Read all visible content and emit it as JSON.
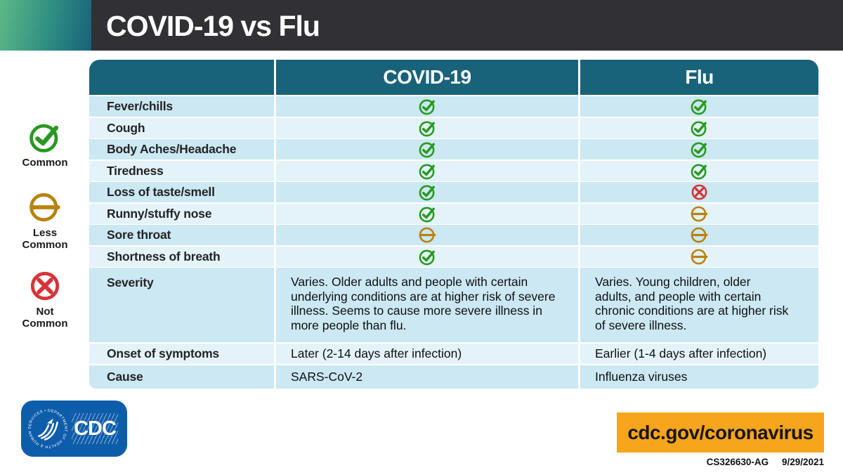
{
  "header": {
    "title": "COVID-19 vs Flu"
  },
  "legend": {
    "items": [
      {
        "id": "common",
        "label": "Common",
        "icon": "check-circle-icon",
        "color": "#28991f"
      },
      {
        "id": "less-common",
        "label": "Less Common",
        "icon": "dash-circle-icon",
        "color": "#b9820f"
      },
      {
        "id": "not-common",
        "label": "Not Common",
        "icon": "x-circle-icon",
        "color": "#d73238"
      }
    ]
  },
  "table": {
    "columns": [
      "",
      "COVID-19",
      "Flu"
    ],
    "symptom_rows": [
      {
        "label": "Fever/chills",
        "covid": "common",
        "flu": "common"
      },
      {
        "label": "Cough",
        "covid": "common",
        "flu": "common"
      },
      {
        "label": "Body Aches/Headache",
        "covid": "common",
        "flu": "common"
      },
      {
        "label": "Tiredness",
        "covid": "common",
        "flu": "common"
      },
      {
        "label": "Loss of taste/smell",
        "covid": "common",
        "flu": "not-common"
      },
      {
        "label": "Runny/stuffy nose",
        "covid": "common",
        "flu": "less-common"
      },
      {
        "label": "Sore throat",
        "covid": "less-common",
        "flu": "less-common"
      },
      {
        "label": "Shortness of breath",
        "covid": "common",
        "flu": "less-common"
      }
    ],
    "detail_rows": [
      {
        "id": "severity",
        "label": "Severity",
        "covid": "Varies. Older adults and people with certain underlying conditions are at higher risk of severe illness. Seems to cause more severe illness in more people than flu.",
        "flu": "Varies. Young children, older adults, and people with certain chronic conditions are at higher risk of severe illness."
      },
      {
        "id": "onset",
        "label": "Onset of symptoms",
        "covid": "Later (2-14 days after infection)",
        "flu": "Earlier (1-4 days after infection)"
      },
      {
        "id": "cause",
        "label": "Cause",
        "covid": "SARS-CoV-2",
        "flu": "Influenza viruses"
      }
    ]
  },
  "footer": {
    "logo": {
      "org": "CDC",
      "seal_text": "DEPARTMENT OF HEALTH & HUMAN SERVICES • USA"
    },
    "link": "cdc.gov/coronavirus",
    "doc_id": "CS326630-AG",
    "date": "9/29/2021"
  },
  "colors": {
    "header_bar": "#313135",
    "gradient_start": "#5cb987",
    "gradient_end": "#17627a",
    "table_header": "#186379",
    "row_dark": "#cbe8f3",
    "row_light": "#e4f3fa",
    "common_green": "#28991f",
    "less_common_gold": "#b9820f",
    "not_common_red": "#d73238",
    "cdc_blue": "#0e5dab",
    "link_orange": "#f7a51c"
  }
}
